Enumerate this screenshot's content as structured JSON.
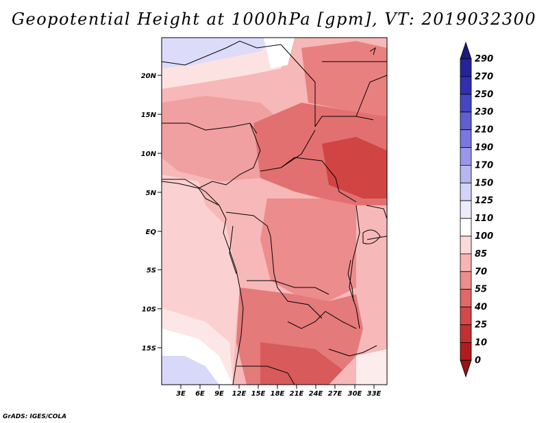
{
  "title": "Geopotential Height at 1000hPa [gpm], VT: 2019032300",
  "footer": "GrADS: IGES/COLA",
  "map": {
    "lat_labels": [
      "20N",
      "15N",
      "10N",
      "5N",
      "EQ",
      "5S",
      "10S",
      "15S"
    ],
    "lon_labels": [
      "3E",
      "6E",
      "9E",
      "12E",
      "15E",
      "18E",
      "21E",
      "24E",
      "27E",
      "30E",
      "33E"
    ]
  },
  "colorbar": {
    "levels": [
      "290",
      "270",
      "250",
      "230",
      "210",
      "190",
      "170",
      "150",
      "125",
      "110",
      "100",
      "85",
      "70",
      "55",
      "40",
      "25",
      "10",
      "0"
    ],
    "colors": [
      "#1a1a7a",
      "#23239a",
      "#2f2fb0",
      "#4646c0",
      "#5f5fd0",
      "#7878e0",
      "#9898ea",
      "#b6b6f2",
      "#d4d4f8",
      "#ececfc",
      "#ffffff",
      "#fddada",
      "#f8b4b4",
      "#ec8e8e",
      "#e06868",
      "#d44848",
      "#c43030",
      "#b01c1c",
      "#961414"
    ]
  }
}
